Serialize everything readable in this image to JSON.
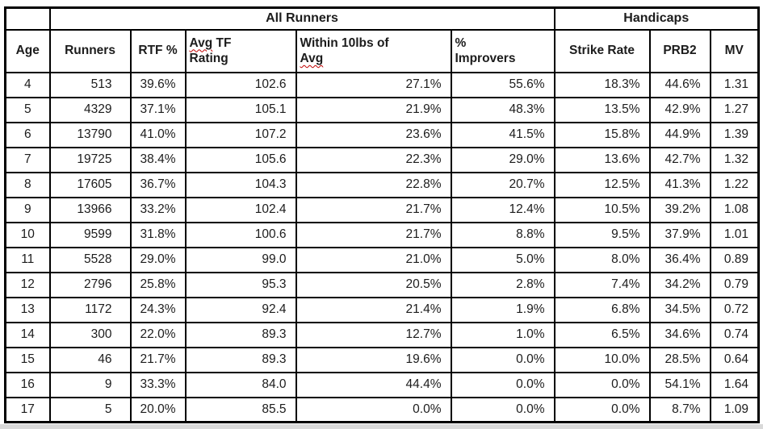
{
  "table": {
    "group_header": {
      "all_runners": "All Runners",
      "handicaps": "Handicaps"
    },
    "headers": {
      "age": "Age",
      "runners": "Runners",
      "rtf_pct": "RTF %",
      "avg_tf": {
        "word_misspelled": "Avg",
        "rest": " TF",
        "line2": "Rating"
      },
      "within": {
        "line1": "Within 10lbs of",
        "line2_misspelled": "Avg"
      },
      "improvers": {
        "line1": "%",
        "line2": "Improvers"
      },
      "strike_rate": "Strike Rate",
      "prb2": "PRB2",
      "mv": "MV"
    },
    "rows": [
      {
        "age": "4",
        "runners": "513",
        "rtf": "39.6%",
        "avg_tf": "102.6",
        "within": "27.1%",
        "improvers": "55.6%",
        "strike": "18.3%",
        "prb2": "44.6%",
        "mv": "1.31"
      },
      {
        "age": "5",
        "runners": "4329",
        "rtf": "37.1%",
        "avg_tf": "105.1",
        "within": "21.9%",
        "improvers": "48.3%",
        "strike": "13.5%",
        "prb2": "42.9%",
        "mv": "1.27"
      },
      {
        "age": "6",
        "runners": "13790",
        "rtf": "41.0%",
        "avg_tf": "107.2",
        "within": "23.6%",
        "improvers": "41.5%",
        "strike": "15.8%",
        "prb2": "44.9%",
        "mv": "1.39"
      },
      {
        "age": "7",
        "runners": "19725",
        "rtf": "38.4%",
        "avg_tf": "105.6",
        "within": "22.3%",
        "improvers": "29.0%",
        "strike": "13.6%",
        "prb2": "42.7%",
        "mv": "1.32"
      },
      {
        "age": "8",
        "runners": "17605",
        "rtf": "36.7%",
        "avg_tf": "104.3",
        "within": "22.8%",
        "improvers": "20.7%",
        "strike": "12.5%",
        "prb2": "41.3%",
        "mv": "1.22"
      },
      {
        "age": "9",
        "runners": "13966",
        "rtf": "33.2%",
        "avg_tf": "102.4",
        "within": "21.7%",
        "improvers": "12.4%",
        "strike": "10.5%",
        "prb2": "39.2%",
        "mv": "1.08"
      },
      {
        "age": "10",
        "runners": "9599",
        "rtf": "31.8%",
        "avg_tf": "100.6",
        "within": "21.7%",
        "improvers": "8.8%",
        "strike": "9.5%",
        "prb2": "37.9%",
        "mv": "1.01"
      },
      {
        "age": "11",
        "runners": "5528",
        "rtf": "29.0%",
        "avg_tf": "99.0",
        "within": "21.0%",
        "improvers": "5.0%",
        "strike": "8.0%",
        "prb2": "36.4%",
        "mv": "0.89"
      },
      {
        "age": "12",
        "runners": "2796",
        "rtf": "25.8%",
        "avg_tf": "95.3",
        "within": "20.5%",
        "improvers": "2.8%",
        "strike": "7.4%",
        "prb2": "34.2%",
        "mv": "0.79"
      },
      {
        "age": "13",
        "runners": "1172",
        "rtf": "24.3%",
        "avg_tf": "92.4",
        "within": "21.4%",
        "improvers": "1.9%",
        "strike": "6.8%",
        "prb2": "34.5%",
        "mv": "0.72"
      },
      {
        "age": "14",
        "runners": "300",
        "rtf": "22.0%",
        "avg_tf": "89.3",
        "within": "12.7%",
        "improvers": "1.0%",
        "strike": "6.5%",
        "prb2": "34.6%",
        "mv": "0.74"
      },
      {
        "age": "15",
        "runners": "46",
        "rtf": "21.7%",
        "avg_tf": "89.3",
        "within": "19.6%",
        "improvers": "0.0%",
        "strike": "10.0%",
        "prb2": "28.5%",
        "mv": "0.64"
      },
      {
        "age": "16",
        "runners": "9",
        "rtf": "33.3%",
        "avg_tf": "84.0",
        "within": "44.4%",
        "improvers": "0.0%",
        "strike": "0.0%",
        "prb2": "54.1%",
        "mv": "1.64"
      },
      {
        "age": "17",
        "runners": "5",
        "rtf": "20.0%",
        "avg_tf": "85.5",
        "within": "0.0%",
        "improvers": "0.0%",
        "strike": "0.0%",
        "prb2": "8.7%",
        "mv": "1.09"
      }
    ]
  },
  "colors": {
    "border": "#000000",
    "text": "#1c1c1c",
    "squiggle": "#c00000",
    "background": "#ffffff"
  }
}
